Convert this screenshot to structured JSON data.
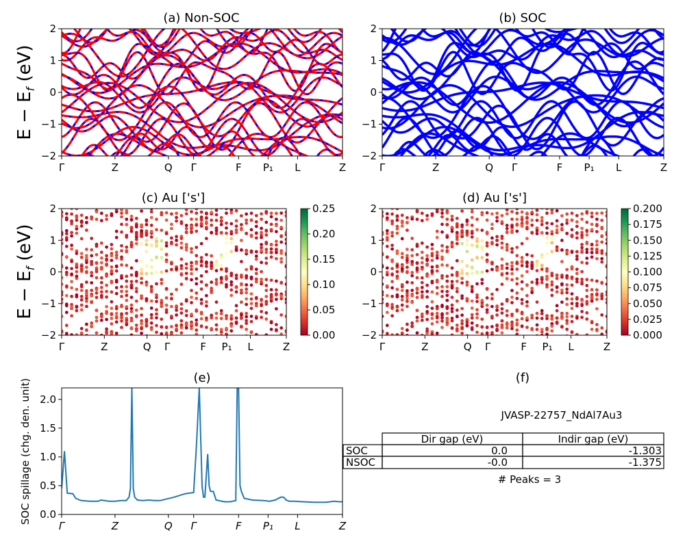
{
  "chart_data": [
    {
      "id": "a",
      "type": "line",
      "title": "(a) Non-SOC",
      "ylabel": "E − E_f (eV)",
      "ylim": [
        -2,
        2
      ],
      "yticks": [
        "2",
        "1",
        "0",
        "−1",
        "−2"
      ],
      "xticks": [
        "Γ",
        "Z",
        "Q",
        "Γ",
        "F",
        "P₁",
        "L",
        "Z"
      ],
      "series": [
        {
          "color": "#0000ff",
          "style": "solid"
        },
        {
          "color": "#ff0000",
          "style": "dashed"
        }
      ]
    },
    {
      "id": "b",
      "type": "line",
      "title": "(b) SOC",
      "ylim": [
        -2,
        2
      ],
      "yticks": [
        "2",
        "1",
        "0",
        "−1",
        "−2"
      ],
      "xticks": [
        "Γ",
        "Z",
        "Q",
        "Γ",
        "F",
        "P₁",
        "L",
        "Z"
      ],
      "series": [
        {
          "color": "#0000ff",
          "style": "solid"
        }
      ]
    },
    {
      "id": "c",
      "type": "scatter",
      "title": "(c)  Au ['s']",
      "ylabel": "E − E_f (eV)",
      "ylim": [
        -2,
        2
      ],
      "yticks": [
        "2",
        "1",
        "0",
        "−1",
        "−2"
      ],
      "xticks": [
        "Γ",
        "Z",
        "Q",
        "Γ",
        "F",
        "P₁",
        "L",
        "Z"
      ],
      "colorbar": {
        "min": 0,
        "max": 0.25,
        "ticks": [
          "0.25",
          "0.20",
          "0.15",
          "0.10",
          "0.05",
          "0.00"
        ],
        "colormap": "RdYlGn"
      }
    },
    {
      "id": "d",
      "type": "scatter",
      "title": "(d) Au ['s']",
      "ylim": [
        -2,
        2
      ],
      "yticks": [
        "2",
        "1",
        "0",
        "−1",
        "−2"
      ],
      "xticks": [
        "Γ",
        "Z",
        "Q",
        "Γ",
        "F",
        "P₁",
        "L",
        "Z"
      ],
      "colorbar": {
        "min": 0,
        "max": 0.2,
        "ticks": [
          "0.200",
          "0.175",
          "0.150",
          "0.125",
          "0.100",
          "0.075",
          "0.050",
          "0.025",
          "0.000"
        ],
        "colormap": "RdYlGn"
      }
    },
    {
      "id": "e",
      "type": "line",
      "title": "(e)",
      "ylabel": "SOC spillage (chg. den. unit)",
      "ylim": [
        0,
        2.2
      ],
      "yticks": [
        "2.0",
        "1.5",
        "1.0",
        "0.5",
        "0.0"
      ],
      "xticks": [
        "Γ",
        "Z",
        "Q",
        "Γ",
        "F",
        "P₁",
        "L",
        "Z"
      ],
      "series": [
        {
          "color": "#1f77b4",
          "x": [
            0,
            0.01,
            0.02,
            0.04,
            0.05,
            0.07,
            0.1,
            0.13,
            0.14,
            0.17,
            0.19,
            0.21,
            0.23,
            0.24,
            0.245,
            0.25,
            0.255,
            0.26,
            0.27,
            0.29,
            0.31,
            0.33,
            0.35,
            0.4,
            0.44,
            0.47,
            0.48,
            0.49,
            0.5,
            0.505,
            0.51,
            0.52,
            0.525,
            0.53,
            0.54,
            0.55,
            0.58,
            0.6,
            0.62,
            0.625,
            0.63,
            0.635,
            0.64,
            0.65,
            0.68,
            0.72,
            0.74,
            0.76,
            0.78,
            0.79,
            0.8,
            0.81,
            0.83,
            0.86,
            0.9,
            0.94,
            0.97,
            0.99,
            1.0
          ],
          "y": [
            0.45,
            1.1,
            0.37,
            0.36,
            0.28,
            0.24,
            0.23,
            0.23,
            0.25,
            0.23,
            0.23,
            0.24,
            0.24,
            0.3,
            0.45,
            2.2,
            0.45,
            0.3,
            0.25,
            0.24,
            0.25,
            0.24,
            0.24,
            0.3,
            0.36,
            0.38,
            1.2,
            2.2,
            0.5,
            0.3,
            0.3,
            1.05,
            0.5,
            0.4,
            0.4,
            0.25,
            0.22,
            0.22,
            0.24,
            2.2,
            2.2,
            0.5,
            0.4,
            0.28,
            0.25,
            0.24,
            0.23,
            0.25,
            0.3,
            0.3,
            0.25,
            0.23,
            0.23,
            0.22,
            0.21,
            0.21,
            0.23,
            0.22,
            0.22
          ]
        }
      ]
    }
  ],
  "panel_f": {
    "title": "(f)",
    "material": "JVASP-22757_NdAl7Au3",
    "columns": [
      "Dir gap (eV)",
      "Indir gap (eV)"
    ],
    "rows": [
      {
        "label": "SOC",
        "dir": "0.0",
        "indir": "-1.303"
      },
      {
        "label": "NSOC",
        "dir": "-0.0",
        "indir": "-1.375"
      }
    ],
    "peaks": "# Peaks = 3"
  }
}
